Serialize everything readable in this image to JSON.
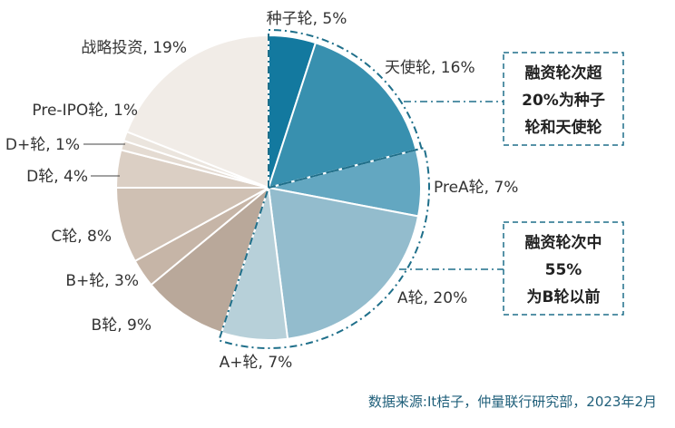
{
  "colors": {
    "accent": "#1f6f8a",
    "source_text": "#1f5f7a"
  },
  "chart_data": {
    "type": "pie",
    "categories": [
      "种子轮",
      "天使轮",
      "PreA轮",
      "A轮",
      "A+轮",
      "B轮",
      "B+轮",
      "C轮",
      "D轮",
      "D+轮",
      "Pre-IPO轮",
      "战略投资"
    ],
    "values": [
      5,
      16,
      7,
      20,
      7,
      9,
      3,
      8,
      4,
      1,
      1,
      19
    ],
    "labels": [
      "种子轮, 5%",
      "天使轮, 16%",
      "PreA轮, 7%",
      "A轮, 20%",
      "A+轮, 7%",
      "B轮, 9%",
      "B+轮, 3%",
      "C轮, 8%",
      "D轮, 4%",
      "D+轮, 1%",
      "Pre-IPO轮, 1%",
      "战略投资, 19%"
    ],
    "colors": [
      "#13799f",
      "#3890af",
      "#63a7c1",
      "#93bccd",
      "#b7d0d9",
      "#b9a89a",
      "#c6b5a7",
      "#cfc0b3",
      "#dbcfc4",
      "#e4dbd2",
      "#ebe5de",
      "#f1ece7"
    ],
    "annotations": [
      {
        "lines": [
          "融资轮次超",
          "20%为种子",
          "轮和天使轮"
        ]
      },
      {
        "lines": [
          "融资轮次中",
          "55%",
          "为B轮以前"
        ]
      }
    ]
  },
  "source": "数据来源:It桔子，仲量联行研究部，2023年2月"
}
